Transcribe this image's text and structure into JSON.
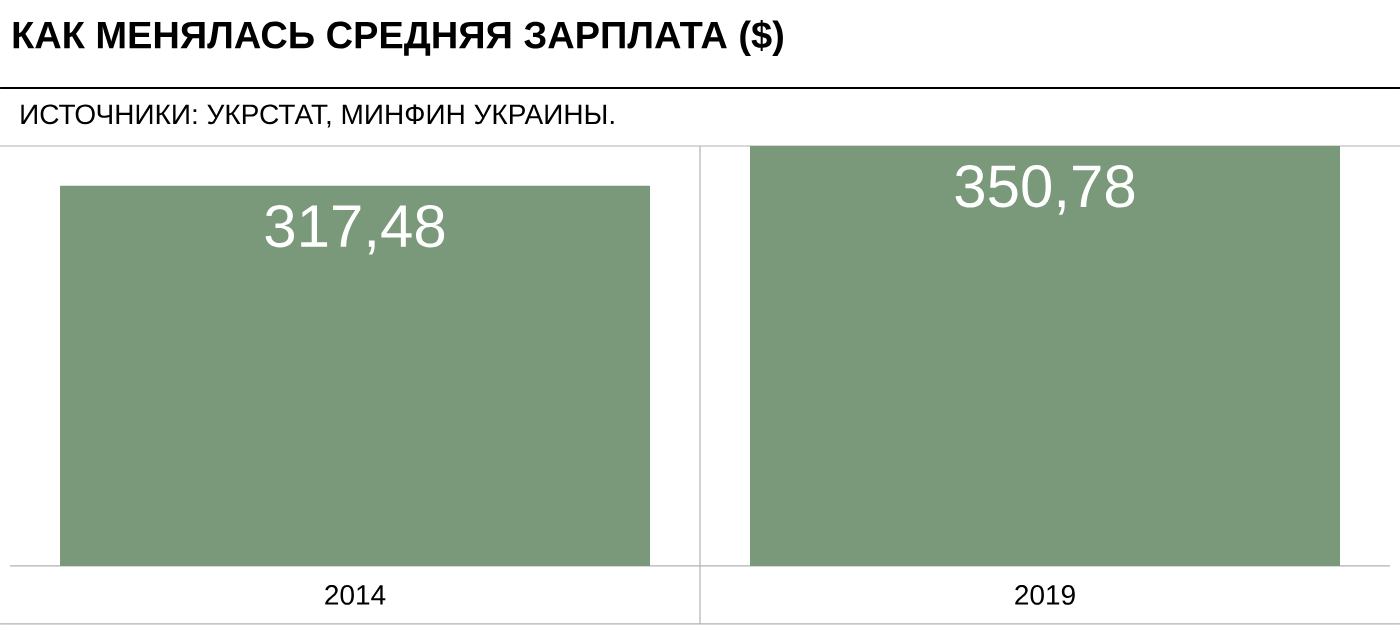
{
  "chart_data": {
    "type": "bar",
    "title": "КАК МЕНЯЛАСЬ СРЕДНЯЯ ЗАРПЛАТА ($)",
    "annotations": [
      "ИСТОЧНИКИ: УКРСТАТ, МИНФИН УКРАИНЫ."
    ],
    "categories": [
      "2014",
      "2019"
    ],
    "values": [
      317.48,
      350.78
    ],
    "color": "#7a987a",
    "value_labels": [
      "317,48",
      "350,78"
    ]
  }
}
